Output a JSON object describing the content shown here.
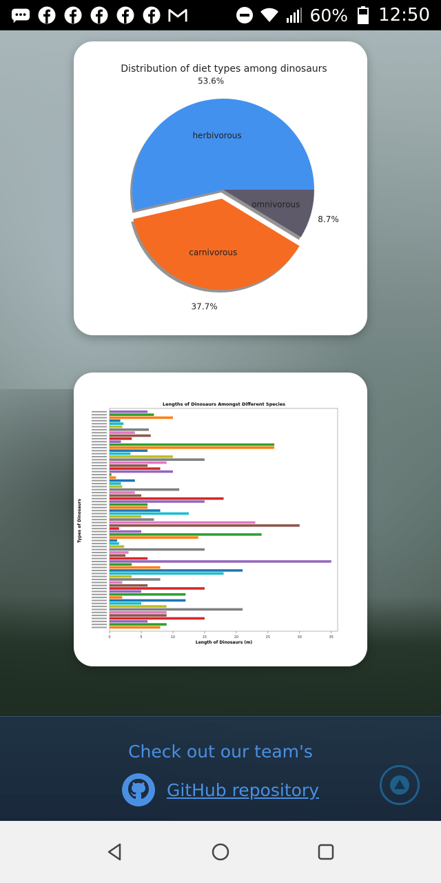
{
  "status_bar": {
    "icons": [
      "chat-bubble-icon",
      "facebook-icon",
      "facebook-icon",
      "facebook-icon",
      "facebook-icon",
      "facebook-icon",
      "gmail-icon"
    ],
    "battery": "60%",
    "time": "12:50"
  },
  "chart_data": [
    {
      "type": "pie",
      "title": "Distribution of diet types among dinosaurs",
      "labels": [
        "herbivorous",
        "carnivorous",
        "omnivorous"
      ],
      "values": [
        53.6,
        37.7,
        8.7
      ],
      "value_labels": [
        "53.6%",
        "37.7%",
        "8.7%"
      ],
      "colors": [
        "#4391ef",
        "#f56b22",
        "#5e5a6a"
      ],
      "exploded": "carnivorous"
    },
    {
      "type": "bar",
      "orientation": "horizontal",
      "title": "Lengths of Dinosaurs Amongst Different Species",
      "xlabel": "Length of Dinosaurs (m)",
      "ylabel": "Types of Dinosaurs",
      "xlim": [
        0,
        36
      ],
      "xticks": [
        "0",
        "5",
        "10",
        "15",
        "20",
        "25",
        "30",
        "35"
      ],
      "values": [
        6,
        7,
        10,
        1.7,
        2.2,
        2,
        6.2,
        4,
        6.5,
        3.5,
        1.8,
        26,
        26,
        6,
        3.3,
        10,
        15,
        9,
        6,
        8,
        10,
        0.3,
        1,
        4,
        1.8,
        2,
        11,
        4,
        5,
        18,
        15,
        6,
        6,
        8,
        12.5,
        5,
        7,
        23,
        30,
        1.5,
        5,
        24,
        14,
        1.2,
        1.5,
        2.3,
        15,
        3,
        2.5,
        6,
        35,
        3.5,
        8,
        21,
        18,
        3.5,
        8,
        2,
        6,
        15,
        5,
        12,
        2,
        12,
        5,
        9,
        21,
        9,
        9,
        15,
        6,
        9,
        8
      ],
      "colors": [
        "#9467bd",
        "#2ca02c",
        "#ff7f0e",
        "#1f77b4",
        "#17becf",
        "#bcbd22",
        "#7f7f7f",
        "#e377c2",
        "#8c564b",
        "#d62728"
      ]
    }
  ],
  "footer": {
    "line1": "Check out our team's",
    "repo_link": "GitHub repository"
  }
}
